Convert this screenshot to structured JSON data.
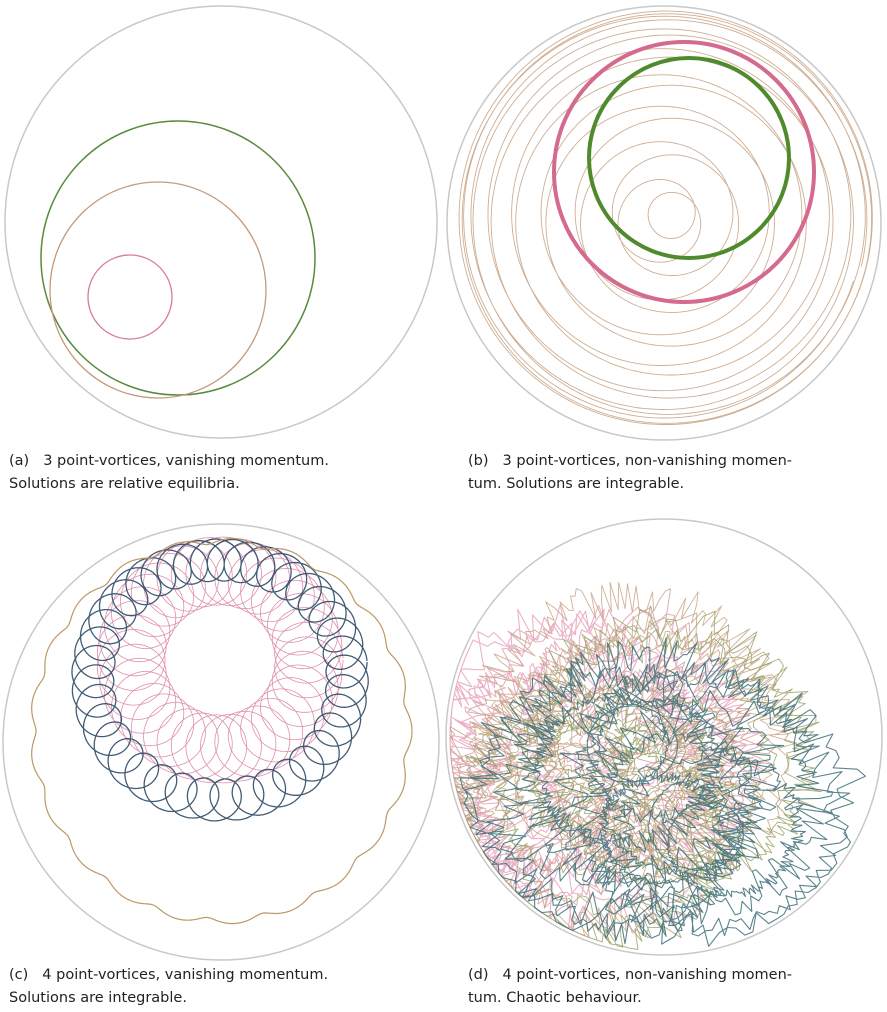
{
  "figure": {
    "panels": [
      {
        "tag": "(a)",
        "caption_line1": "3 point-vortices, vanishing momentum.",
        "caption_line2": "Solutions are relative equilibria.",
        "colors": [
          "#5a8a3c",
          "#c49a7a",
          "#d87aa0"
        ],
        "boundary_color": "#c8c8c8"
      },
      {
        "tag": "(b)",
        "caption_line1": "3 point-vortices, non-vanishing momen-",
        "caption_line2": "tum. Solutions are integrable.",
        "colors": [
          "#4f8a2c",
          "#d46a8e",
          "#c9a587"
        ],
        "boundary_color": "#c8c8c8"
      },
      {
        "tag": "(c)",
        "caption_line1": "4 point-vortices, vanishing momentum.",
        "caption_line2": "Solutions are integrable.",
        "colors": [
          "#2c4a66",
          "#d87aa0",
          "#b8925e"
        ],
        "boundary_color": "#c8c8c8"
      },
      {
        "tag": "(d)",
        "caption_line1": "4 point-vortices, non-vanishing momen-",
        "caption_line2": "tum. Chaotic behaviour.",
        "colors": [
          "#3d6e78",
          "#e7a5bd",
          "#9ba067",
          "#c7a384"
        ],
        "boundary_color": "#c8c8c8"
      }
    ]
  }
}
